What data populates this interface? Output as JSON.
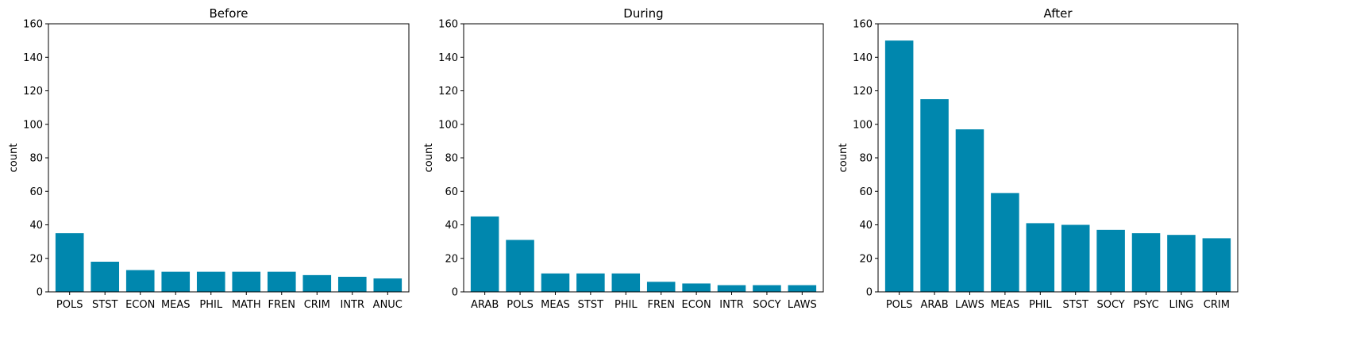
{
  "bar_color": "#0087ae",
  "chart_data": [
    {
      "type": "bar",
      "title": "Before",
      "xlabel": "",
      "ylabel": "count",
      "ylim": [
        0,
        160
      ],
      "yticks": [
        0,
        20,
        40,
        60,
        80,
        100,
        120,
        140,
        160
      ],
      "categories": [
        "POLS",
        "STST",
        "ECON",
        "MEAS",
        "PHIL",
        "MATH",
        "FREN",
        "CRIM",
        "INTR",
        "ANUC"
      ],
      "values": [
        35,
        18,
        13,
        12,
        12,
        12,
        12,
        10,
        9,
        8
      ],
      "grid": false
    },
    {
      "type": "bar",
      "title": "During",
      "xlabel": "",
      "ylabel": "count",
      "ylim": [
        0,
        160
      ],
      "yticks": [
        0,
        20,
        40,
        60,
        80,
        100,
        120,
        140,
        160
      ],
      "categories": [
        "ARAB",
        "POLS",
        "MEAS",
        "STST",
        "PHIL",
        "FREN",
        "ECON",
        "INTR",
        "SOCY",
        "LAWS"
      ],
      "values": [
        45,
        31,
        11,
        11,
        11,
        6,
        5,
        4,
        4,
        4
      ],
      "grid": false
    },
    {
      "type": "bar",
      "title": "After",
      "xlabel": "",
      "ylabel": "count",
      "ylim": [
        0,
        160
      ],
      "yticks": [
        0,
        20,
        40,
        60,
        80,
        100,
        120,
        140,
        160
      ],
      "categories": [
        "POLS",
        "ARAB",
        "LAWS",
        "MEAS",
        "PHIL",
        "STST",
        "SOCY",
        "PSYC",
        "LING",
        "CRIM"
      ],
      "values": [
        150,
        115,
        97,
        59,
        41,
        40,
        37,
        35,
        34,
        32
      ],
      "grid": false
    }
  ]
}
